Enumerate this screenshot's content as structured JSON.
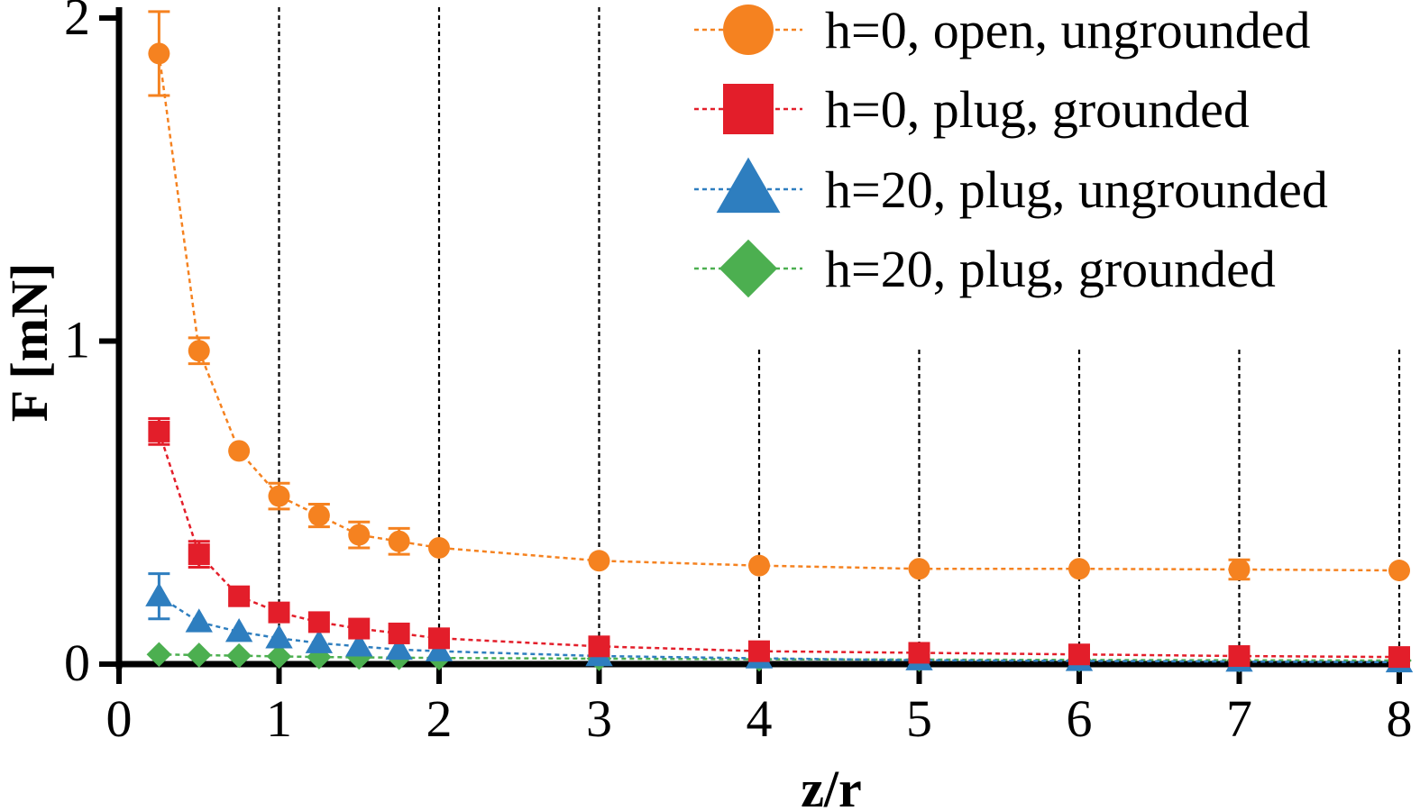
{
  "chart_data": {
    "type": "line",
    "xlabel": "z/r",
    "ylabel": "F [mN]",
    "xlim": [
      0,
      8
    ],
    "ylim": [
      0,
      2
    ],
    "xticks": [
      "0",
      "1",
      "2",
      "3",
      "4",
      "5",
      "6",
      "7",
      "8"
    ],
    "yticks": [
      "0",
      "1",
      "2"
    ],
    "grid": "vertical dotted lines at x = 1..8",
    "legend_position": "top-right",
    "series": [
      {
        "name": "h=0, open, ungrounded",
        "color": "#f58220",
        "marker": "circle",
        "x": [
          0.25,
          0.5,
          0.75,
          1,
          1.25,
          1.5,
          1.75,
          2,
          3,
          4,
          5,
          6,
          7,
          8
        ],
        "y": [
          1.89,
          0.97,
          0.66,
          0.52,
          0.46,
          0.4,
          0.38,
          0.36,
          0.32,
          0.305,
          0.295,
          0.295,
          0.293,
          0.29
        ],
        "err": [
          0.13,
          0.04,
          0.0,
          0.04,
          0.035,
          0.04,
          0.04,
          0.0,
          0.0,
          0.0,
          0.0,
          0.0,
          0.03,
          0.0
        ]
      },
      {
        "name": "h=0, plug, grounded",
        "color": "#e31e2a",
        "marker": "square",
        "x": [
          0.25,
          0.5,
          0.75,
          1,
          1.25,
          1.5,
          1.75,
          2,
          3,
          4,
          5,
          6,
          7,
          8
        ],
        "y": [
          0.72,
          0.34,
          0.21,
          0.16,
          0.13,
          0.11,
          0.095,
          0.08,
          0.055,
          0.04,
          0.035,
          0.03,
          0.025,
          0.022
        ],
        "err": [
          0.04,
          0.04,
          0.0,
          0.0,
          0.0,
          0.0,
          0.0,
          0.0,
          0.0,
          0.0,
          0.0,
          0.0,
          0.0,
          0.0
        ]
      },
      {
        "name": "h=20, plug, ungrounded",
        "color": "#2e7ebf",
        "marker": "triangle",
        "x": [
          0.25,
          0.5,
          0.75,
          1,
          1.25,
          1.5,
          1.75,
          2,
          3,
          4,
          5,
          6,
          7,
          8
        ],
        "y": [
          0.21,
          0.13,
          0.1,
          0.08,
          0.065,
          0.055,
          0.045,
          0.04,
          0.025,
          0.018,
          0.012,
          0.01,
          0.008,
          0.006
        ],
        "err": [
          0.07,
          0.0,
          0.0,
          0.0,
          0.0,
          0.0,
          0.0,
          0.0,
          0.0,
          0.0,
          0.0,
          0.0,
          0.0,
          0.0
        ]
      },
      {
        "name": "h=20, plug, grounded",
        "color": "#4caf50",
        "marker": "diamond",
        "x": [
          0.25,
          0.5,
          0.75,
          1,
          1.25,
          1.5,
          1.75,
          2,
          3,
          4,
          5,
          6,
          7,
          8
        ],
        "y": [
          0.03,
          0.028,
          0.026,
          0.024,
          0.022,
          0.021,
          0.02,
          0.019,
          0.017,
          0.015,
          0.014,
          0.013,
          0.012,
          0.011
        ],
        "err": [
          0,
          0,
          0,
          0,
          0,
          0,
          0,
          0,
          0,
          0,
          0,
          0,
          0,
          0
        ]
      }
    ]
  }
}
